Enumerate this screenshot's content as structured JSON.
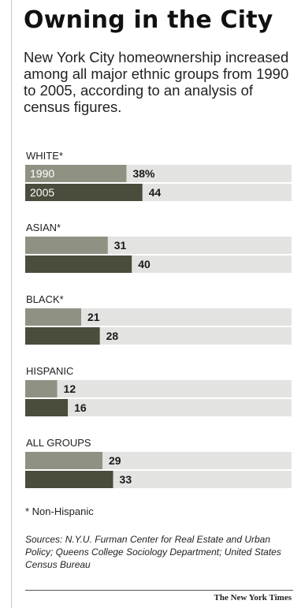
{
  "header": {
    "title": "Owning in the City",
    "subtitle": "New York City homeownership increased among all major ethnic groups from 1990 to 2005, according to an analysis of census figures."
  },
  "chart_data": {
    "type": "bar",
    "orientation": "horizontal",
    "title": "Owning in the City",
    "categories": [
      "WHITE*",
      "ASIAN*",
      "BLACK*",
      "HISPANIC",
      "ALL GROUPS"
    ],
    "series": [
      {
        "name": "1990",
        "values": [
          38,
          31,
          21,
          12,
          29
        ],
        "color": "#8f9283"
      },
      {
        "name": "2005",
        "values": [
          44,
          40,
          28,
          16,
          33
        ],
        "color": "#4a4c3c"
      }
    ],
    "value_labels": {
      "1990": [
        "38%",
        "31",
        "21",
        "12",
        "29"
      ],
      "2005": [
        "44",
        "40",
        "28",
        "16",
        "33"
      ]
    },
    "series_labels_in_bar_of_group": 0,
    "unit": "%",
    "xlim": [
      0,
      100
    ],
    "background_color": "#e3e3e1",
    "legend": "inside-first-group",
    "grid": false
  },
  "footer": {
    "note": "* Non-Hispanic",
    "sources": "Sources: N.Y.U. Furman Center for Real Estate and Urban Policy; Queens College Sociology Department; United States Census Bureau",
    "credit": "The New York Times"
  }
}
